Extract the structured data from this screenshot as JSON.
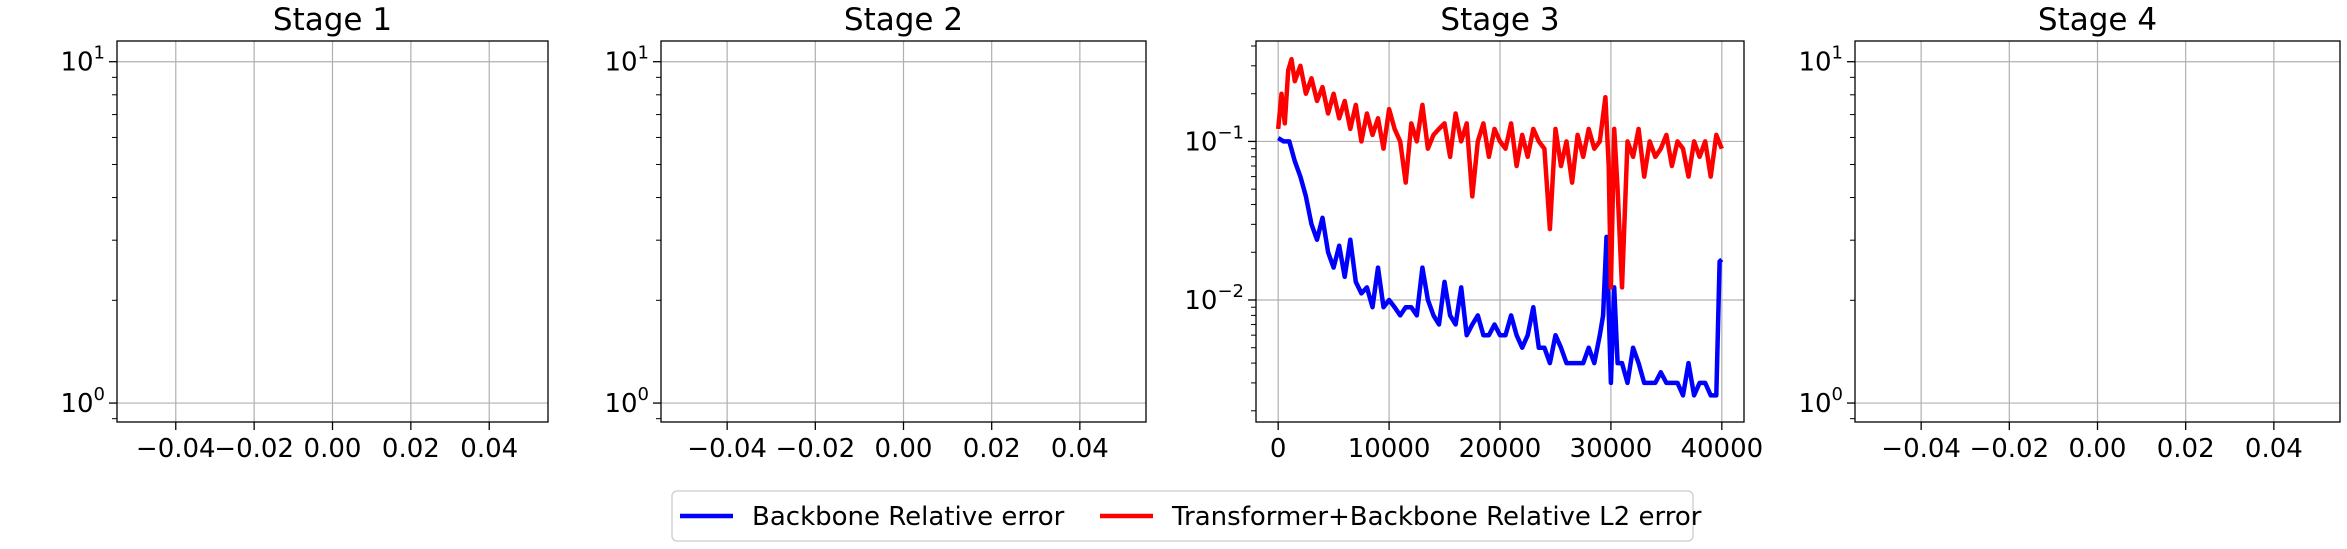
{
  "chart_data": [
    {
      "type": "line",
      "title": "Stage 1",
      "xlabel": "",
      "ylabel": "",
      "xlim": [
        -0.055,
        0.055
      ],
      "ylim": [
        0.88,
        11.5
      ],
      "yscale": "log",
      "grid": true,
      "x_ticks": [
        -0.04,
        -0.02,
        0.0,
        0.02,
        0.04
      ],
      "x_tick_labels": [
        "−0.04",
        "−0.02",
        "0.00",
        "0.02",
        "0.04"
      ],
      "y_ticks": [
        1,
        10
      ],
      "y_tick_labels": [
        {
          "base": "10",
          "exp": "0"
        },
        {
          "base": "10",
          "exp": "1"
        }
      ],
      "series": []
    },
    {
      "type": "line",
      "title": "Stage 2",
      "xlabel": "",
      "ylabel": "",
      "xlim": [
        -0.055,
        0.055
      ],
      "ylim": [
        0.88,
        11.5
      ],
      "yscale": "log",
      "grid": true,
      "x_ticks": [
        -0.04,
        -0.02,
        0.0,
        0.02,
        0.04
      ],
      "x_tick_labels": [
        "−0.04",
        "−0.02",
        "0.00",
        "0.02",
        "0.04"
      ],
      "y_ticks": [
        1,
        10
      ],
      "y_tick_labels": [
        {
          "base": "10",
          "exp": "0"
        },
        {
          "base": "10",
          "exp": "1"
        }
      ],
      "series": []
    },
    {
      "type": "line",
      "title": "Stage 3",
      "xlabel": "",
      "ylabel": "",
      "xlim": [
        -2000,
        42000
      ],
      "ylim": [
        0.0017,
        0.43
      ],
      "yscale": "log",
      "grid": true,
      "x_ticks": [
        0,
        10000,
        20000,
        30000,
        40000
      ],
      "x_tick_labels": [
        "0",
        "10000",
        "20000",
        "30000",
        "40000"
      ],
      "y_ticks": [
        0.01,
        0.1
      ],
      "y_tick_labels": [
        {
          "base": "10",
          "exp": "−2"
        },
        {
          "base": "10",
          "exp": "−1"
        }
      ],
      "series": [
        {
          "name": "Backbone Relative error",
          "color": "#0000ff",
          "x": [
            0,
            500,
            1000,
            1500,
            2000,
            2500,
            3000,
            3500,
            4000,
            4500,
            5000,
            5500,
            6000,
            6500,
            7000,
            7500,
            8000,
            8500,
            9000,
            9500,
            10000,
            10500,
            11000,
            11500,
            12000,
            12500,
            13000,
            13500,
            14000,
            14500,
            15000,
            15500,
            16000,
            16500,
            17000,
            17500,
            18000,
            18500,
            19000,
            19500,
            20000,
            20500,
            21000,
            21500,
            22000,
            22500,
            23000,
            23500,
            24000,
            24500,
            25000,
            25500,
            26000,
            26500,
            27000,
            27500,
            28000,
            28500,
            29000,
            29300,
            29600,
            30000,
            30300,
            30600,
            31000,
            31500,
            32000,
            32500,
            33000,
            33500,
            34000,
            34500,
            35000,
            35500,
            36000,
            36500,
            37000,
            37500,
            38000,
            38500,
            39000,
            39500,
            39800,
            40000
          ],
          "values": [
            0.105,
            0.1,
            0.1,
            0.075,
            0.06,
            0.045,
            0.03,
            0.024,
            0.033,
            0.02,
            0.016,
            0.022,
            0.014,
            0.024,
            0.013,
            0.011,
            0.012,
            0.009,
            0.016,
            0.009,
            0.01,
            0.009,
            0.008,
            0.009,
            0.009,
            0.008,
            0.016,
            0.01,
            0.008,
            0.007,
            0.013,
            0.008,
            0.007,
            0.012,
            0.006,
            0.007,
            0.008,
            0.006,
            0.006,
            0.007,
            0.006,
            0.006,
            0.008,
            0.006,
            0.005,
            0.006,
            0.009,
            0.005,
            0.005,
            0.004,
            0.006,
            0.005,
            0.004,
            0.004,
            0.004,
            0.004,
            0.005,
            0.004,
            0.006,
            0.008,
            0.025,
            0.003,
            0.012,
            0.004,
            0.004,
            0.003,
            0.005,
            0.004,
            0.003,
            0.003,
            0.003,
            0.0035,
            0.003,
            0.003,
            0.003,
            0.0025,
            0.004,
            0.0025,
            0.003,
            0.003,
            0.0025,
            0.0025,
            0.0175,
            0.018
          ]
        },
        {
          "name": "Transformer+Backbone Relative L2 error",
          "color": "#ff0000",
          "x": [
            0,
            300,
            600,
            900,
            1200,
            1500,
            2000,
            2500,
            3000,
            3500,
            4000,
            4500,
            5000,
            5500,
            6000,
            6500,
            7000,
            7500,
            8000,
            8500,
            9000,
            9500,
            10000,
            10500,
            11000,
            11500,
            12000,
            12500,
            13000,
            13500,
            14000,
            14500,
            15000,
            15500,
            16000,
            16500,
            17000,
            17500,
            18000,
            18500,
            19000,
            19500,
            20000,
            20500,
            21000,
            21500,
            22000,
            22500,
            23000,
            23500,
            24000,
            24500,
            25000,
            25500,
            26000,
            26500,
            27000,
            27500,
            28000,
            28500,
            29000,
            29500,
            29800,
            30000,
            30300,
            30600,
            31000,
            31500,
            32000,
            32500,
            33000,
            33500,
            34000,
            34500,
            35000,
            35500,
            36000,
            36500,
            37000,
            37500,
            38000,
            38500,
            39000,
            39500,
            40000
          ],
          "values": [
            0.12,
            0.2,
            0.13,
            0.28,
            0.33,
            0.24,
            0.3,
            0.2,
            0.25,
            0.18,
            0.22,
            0.15,
            0.2,
            0.14,
            0.18,
            0.12,
            0.17,
            0.1,
            0.15,
            0.11,
            0.14,
            0.09,
            0.16,
            0.12,
            0.1,
            0.055,
            0.13,
            0.1,
            0.17,
            0.09,
            0.11,
            0.12,
            0.13,
            0.08,
            0.15,
            0.1,
            0.13,
            0.045,
            0.1,
            0.13,
            0.08,
            0.12,
            0.1,
            0.09,
            0.13,
            0.07,
            0.11,
            0.08,
            0.12,
            0.1,
            0.09,
            0.028,
            0.12,
            0.07,
            0.1,
            0.055,
            0.11,
            0.08,
            0.12,
            0.09,
            0.1,
            0.19,
            0.07,
            0.012,
            0.12,
            0.05,
            0.012,
            0.1,
            0.08,
            0.12,
            0.06,
            0.1,
            0.08,
            0.09,
            0.11,
            0.07,
            0.1,
            0.09,
            0.06,
            0.1,
            0.08,
            0.1,
            0.06,
            0.11,
            0.09
          ]
        }
      ]
    },
    {
      "type": "line",
      "title": "Stage 4",
      "xlabel": "",
      "ylabel": "",
      "xlim": [
        -0.055,
        0.055
      ],
      "ylim": [
        0.88,
        11.5
      ],
      "yscale": "log",
      "grid": true,
      "x_ticks": [
        -0.04,
        -0.02,
        0.0,
        0.02,
        0.04
      ],
      "x_tick_labels": [
        "−0.04",
        "−0.02",
        "0.00",
        "0.02",
        "0.04"
      ],
      "y_ticks": [
        1,
        10
      ],
      "y_tick_labels": [
        {
          "base": "10",
          "exp": "0"
        },
        {
          "base": "10",
          "exp": "1"
        }
      ],
      "series": []
    }
  ],
  "legend": {
    "placement": "bottom-center",
    "entries": [
      {
        "label": "Backbone Relative error",
        "color": "#0000ff"
      },
      {
        "label": "Transformer+Backbone Relative L2 error",
        "color": "#ff0000"
      }
    ]
  }
}
